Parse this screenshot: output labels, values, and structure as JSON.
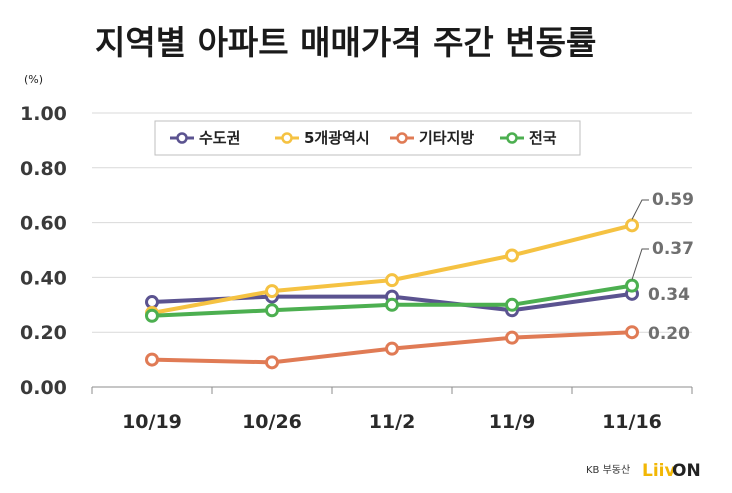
{
  "title": "지역별 아파트 매매가격 주간 변동률",
  "unit": "(%)",
  "brand": {
    "prefix": "KB 부동산",
    "name": "Liiv",
    "suffix": "ON"
  },
  "colors": {
    "grid": "#d9d9d9",
    "axis": "#8c8c8c",
    "label": "#6f6f6f"
  },
  "chart_data": {
    "type": "line",
    "categories": [
      "10/19",
      "10/26",
      "11/2",
      "11/9",
      "11/16"
    ],
    "ylim": [
      0,
      1.0
    ],
    "yticks": [
      "0.00",
      "0.20",
      "0.40",
      "0.60",
      "0.80",
      "1.00"
    ],
    "ytick_values": [
      0,
      0.2,
      0.4,
      0.6,
      0.8,
      1.0
    ],
    "grid": true,
    "legend": "top-left",
    "series": [
      {
        "name": "수도권",
        "color": "#5b5390",
        "values": [
          0.31,
          0.33,
          0.33,
          0.28,
          0.34
        ],
        "end_label": "0.34"
      },
      {
        "name": "5개광역시",
        "color": "#f5c242",
        "values": [
          0.27,
          0.35,
          0.39,
          0.48,
          0.59
        ],
        "end_label": "0.59"
      },
      {
        "name": "기타지방",
        "color": "#e07b55",
        "values": [
          0.1,
          0.09,
          0.14,
          0.18,
          0.2
        ],
        "end_label": "0.20"
      },
      {
        "name": "전국",
        "color": "#4caf50",
        "values": [
          0.26,
          0.28,
          0.3,
          0.3,
          0.37
        ],
        "end_label": "0.37"
      }
    ]
  }
}
